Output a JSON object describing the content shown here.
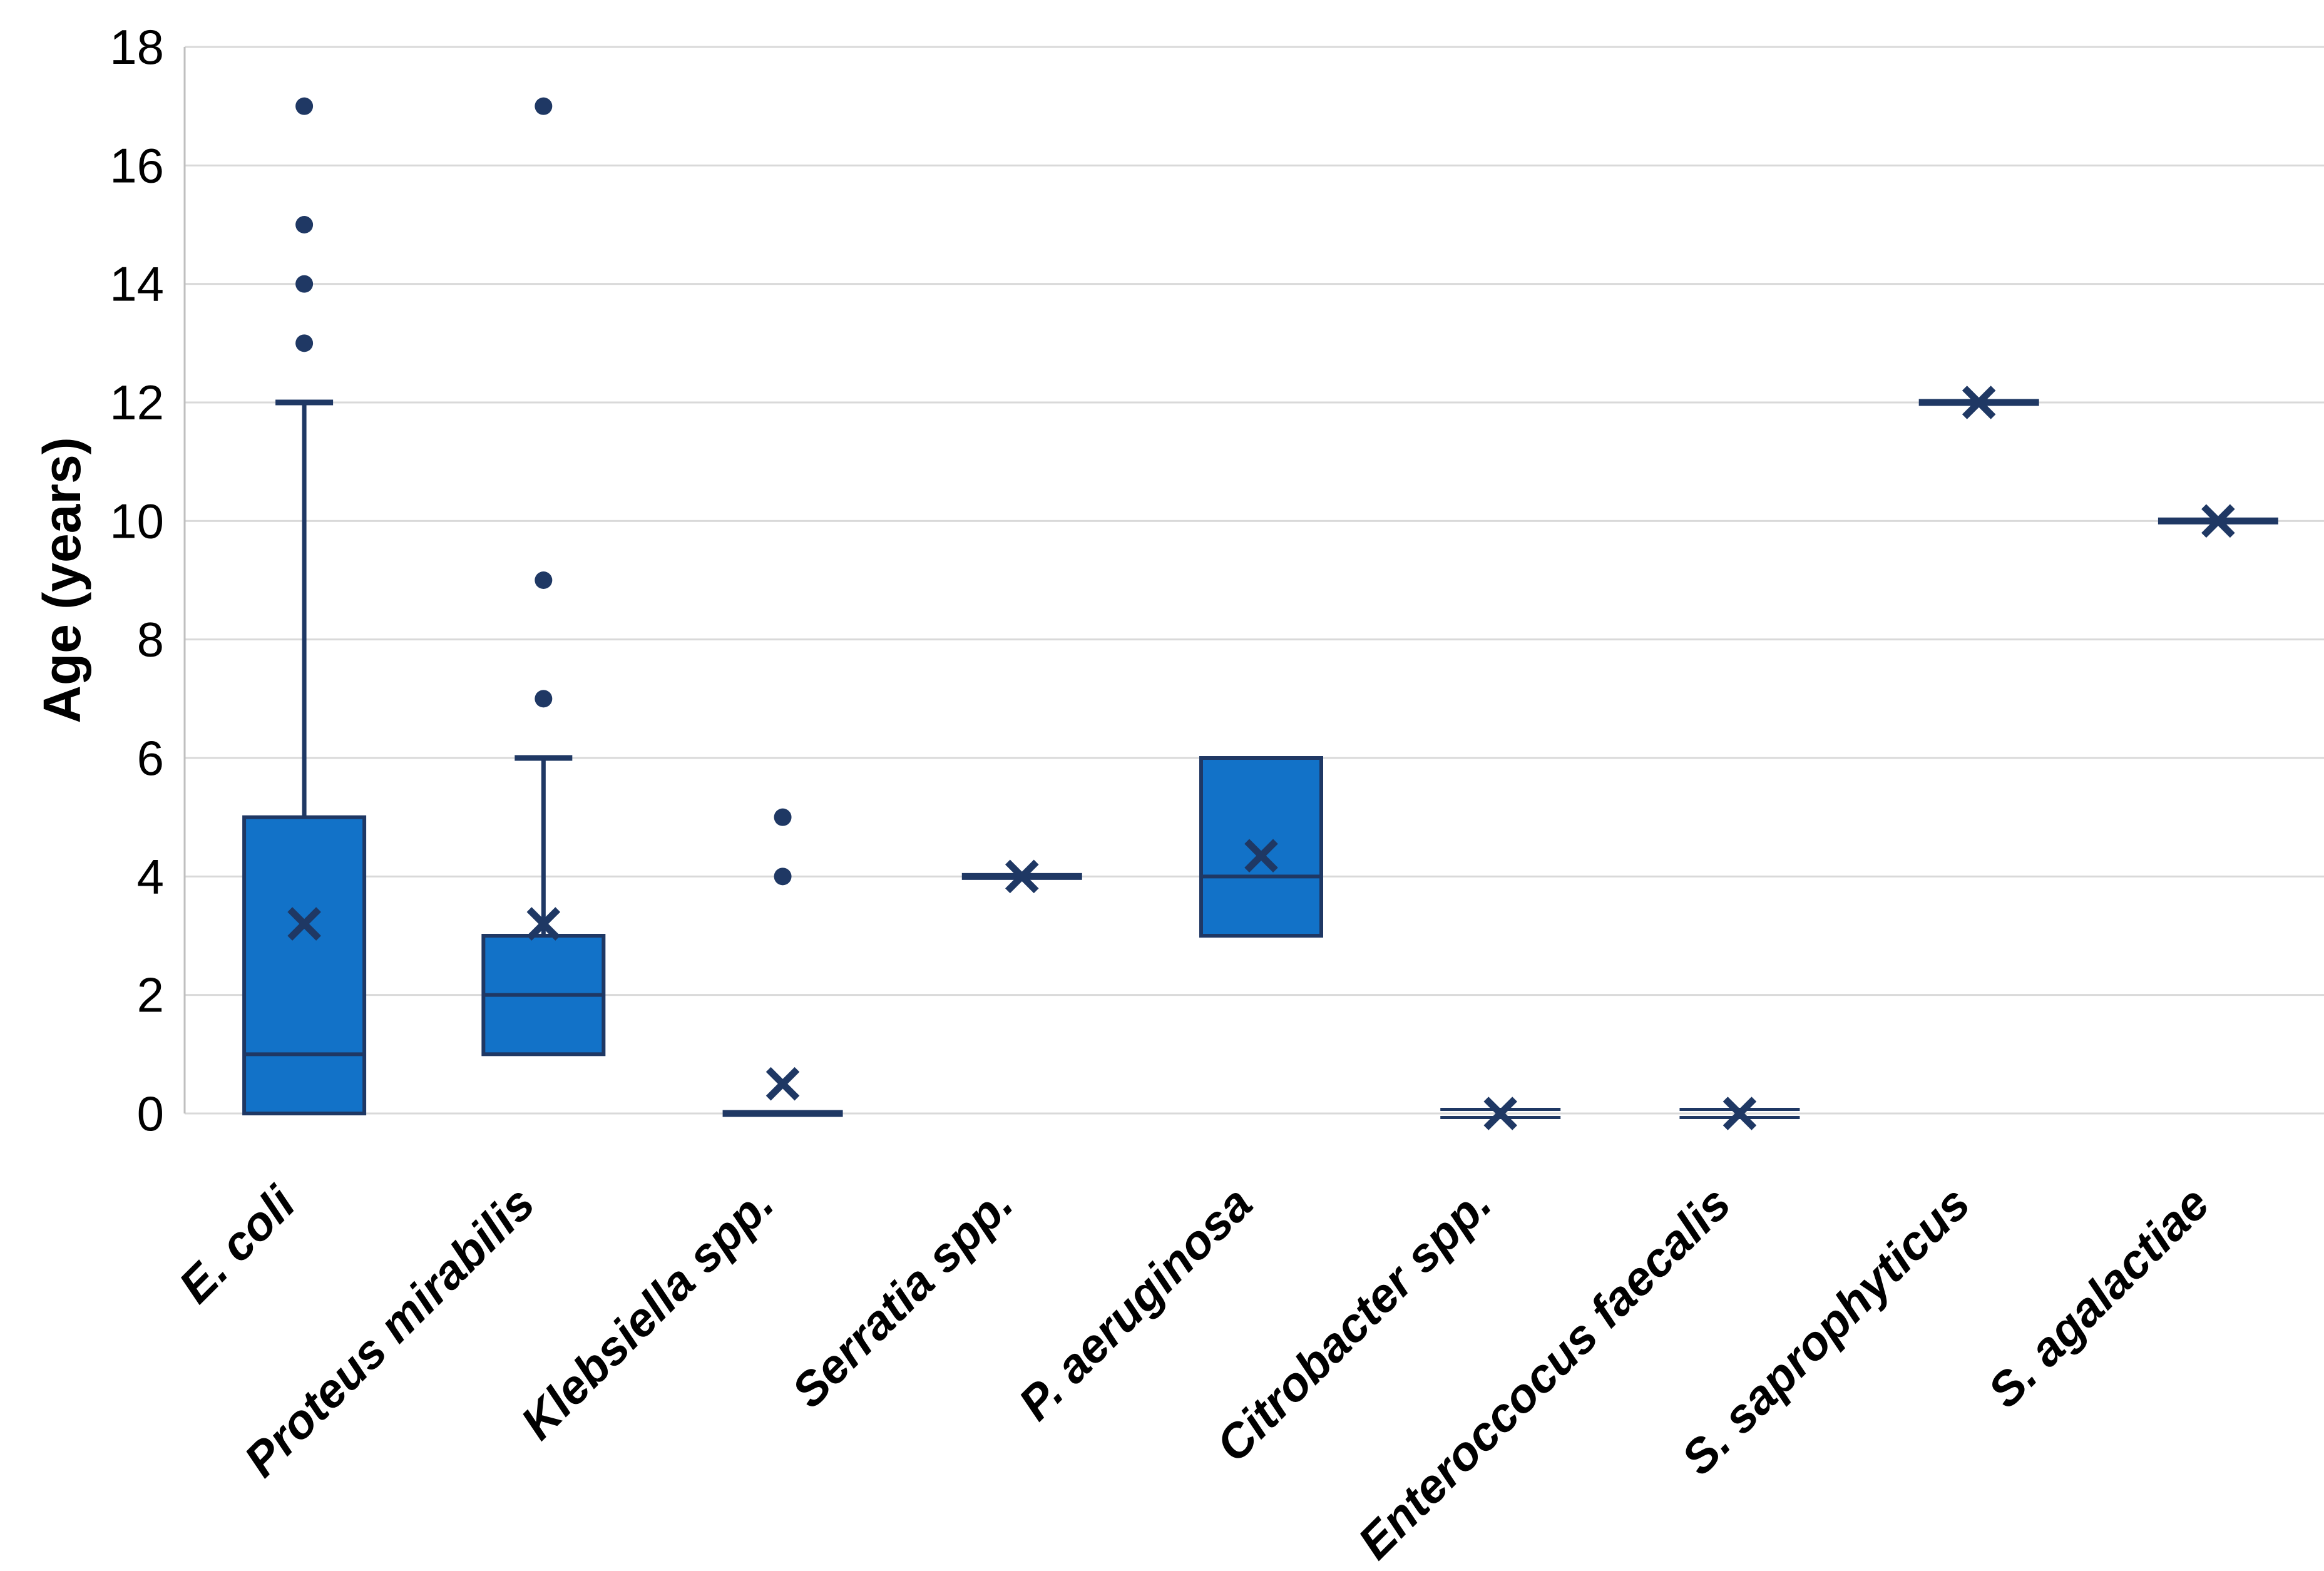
{
  "chart_data": {
    "type": "box",
    "title": "",
    "xlabel": "",
    "ylabel": "Age (years)",
    "ylim": [
      0,
      18
    ],
    "yticks": [
      0,
      2,
      4,
      6,
      8,
      10,
      12,
      14,
      16,
      18
    ],
    "grid": "horizontal",
    "legend": "none",
    "colors": {
      "box_fill": "#1272C8",
      "box_stroke": "#1F3864",
      "marker": "#1F3864",
      "gridline": "#D9D9D9",
      "axis_line": "#BFBFBF",
      "text": "#000000",
      "background": "#FFFFFF"
    },
    "categories": [
      "E. coli",
      "Proteus mirabilis",
      "Klebsiella spp.",
      "Serratia spp.",
      "P. aeruginosa",
      "Citrobacter spp.",
      "Enteroccocus faecalis",
      "S. saprophyticus",
      "S. agalactiae"
    ],
    "series": [
      {
        "name": "E. coli",
        "q1": 0,
        "median": 1,
        "q3": 5,
        "whisker_low": 0,
        "whisker_high": 12,
        "mean": 3.2,
        "outliers": [
          13,
          14,
          15,
          17
        ],
        "style": "box"
      },
      {
        "name": "Proteus mirabilis",
        "q1": 1,
        "median": 2,
        "q3": 3,
        "whisker_low": 1,
        "whisker_high": 6,
        "mean": 3.2,
        "outliers": [
          7,
          9,
          17
        ],
        "style": "box"
      },
      {
        "name": "Klebsiella spp.",
        "q1": 0,
        "median": 0,
        "q3": 0,
        "whisker_low": 0,
        "whisker_high": 0,
        "mean": 0.5,
        "outliers": [
          4,
          5
        ],
        "style": "flat"
      },
      {
        "name": "Serratia spp.",
        "q1": 4,
        "median": 4,
        "q3": 4,
        "whisker_low": 4,
        "whisker_high": 4,
        "mean": 4,
        "outliers": [],
        "style": "flat"
      },
      {
        "name": "P. aeruginosa",
        "q1": 3,
        "median": 4,
        "q3": 6,
        "whisker_low": 3,
        "whisker_high": 6,
        "mean": 4.35,
        "outliers": [],
        "style": "box"
      },
      {
        "name": "Citrobacter spp.",
        "q1": 0,
        "median": 0,
        "q3": 0,
        "whisker_low": 0,
        "whisker_high": 0,
        "mean": 0,
        "outliers": [],
        "style": "flat-double"
      },
      {
        "name": "Enteroccocus faecalis",
        "q1": 0,
        "median": 0,
        "q3": 0,
        "whisker_low": 0,
        "whisker_high": 0,
        "mean": 0,
        "outliers": [],
        "style": "flat-double"
      },
      {
        "name": "S. saprophyticus",
        "q1": 12,
        "median": 12,
        "q3": 12,
        "whisker_low": 12,
        "whisker_high": 12,
        "mean": 12,
        "outliers": [],
        "style": "flat"
      },
      {
        "name": "S. agalactiae",
        "q1": 10,
        "median": 10,
        "q3": 10,
        "whisker_low": 10,
        "whisker_high": 10,
        "mean": 10,
        "outliers": [],
        "style": "flat"
      }
    ]
  }
}
